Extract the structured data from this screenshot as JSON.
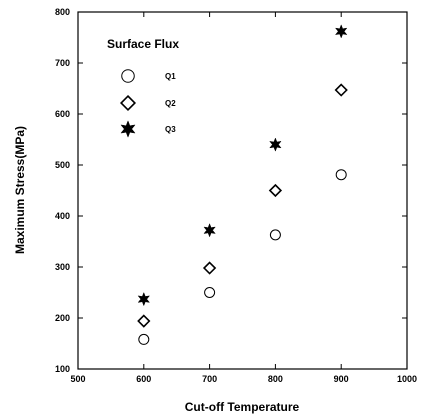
{
  "chart_data": {
    "type": "scatter",
    "title": "",
    "xlabel": "Cut-off Temperature",
    "ylabel": "Maximum Stress(MPa)",
    "xlim": [
      500,
      1000
    ],
    "ylim": [
      100,
      800
    ],
    "x_ticks": [
      500,
      600,
      700,
      800,
      900,
      1000
    ],
    "y_ticks": [
      100,
      200,
      300,
      400,
      500,
      600,
      700,
      800
    ],
    "x_tick_labels": [
      "500",
      "600",
      "700",
      "800",
      "900",
      "1000"
    ],
    "y_tick_labels": [
      "100",
      "200",
      "300",
      "400",
      "500",
      "600",
      "700",
      "800"
    ],
    "grid": false,
    "legend": {
      "title": "Surface Flux",
      "placement": "top-left"
    },
    "series": [
      {
        "name": "Q1",
        "marker": "circle",
        "x": [
          600,
          700,
          800,
          900
        ],
        "y": [
          158,
          250,
          363,
          481
        ]
      },
      {
        "name": "Q2",
        "marker": "diamond",
        "x": [
          600,
          700,
          800,
          900
        ],
        "y": [
          194,
          298,
          450,
          647
        ]
      },
      {
        "name": "Q3",
        "marker": "star",
        "x": [
          600,
          700,
          800,
          900
        ],
        "y": [
          237,
          372,
          540,
          762
        ]
      }
    ]
  }
}
